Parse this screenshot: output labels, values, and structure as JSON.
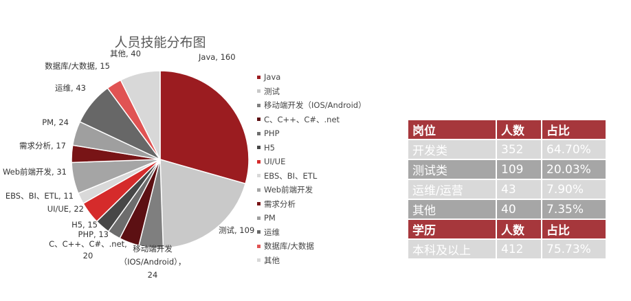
{
  "chart_data": {
    "type": "pie",
    "title": "人员技能分布图",
    "start": "12 o'clock, clockwise",
    "slices": [
      {
        "name": "Java",
        "value": 160,
        "label": "Java, 160",
        "color": "#9b1c20"
      },
      {
        "name": "测试",
        "value": 109,
        "label": "测试, 109",
        "color": "#c9c9c9"
      },
      {
        "name": "移动端开发（IOS/Android）",
        "value": 24,
        "label_lines": [
          "移动端开发",
          "（IOS/Android），",
          "24"
        ],
        "color": "#7f7f7f"
      },
      {
        "name": "C、C++、C#、.net",
        "value": 20,
        "label_lines": [
          "C、C++、C#、.net,",
          "20"
        ],
        "color": "#5c1013"
      },
      {
        "name": "PHP",
        "value": 13,
        "label": "PHP, 13",
        "color": "#6d6d6d"
      },
      {
        "name": "H5",
        "value": 15,
        "label": "H5, 15",
        "color": "#474747"
      },
      {
        "name": "UI/UE",
        "value": 22,
        "label": "UI/UE, 22",
        "color": "#d52b2b"
      },
      {
        "name": "EBS、BI、ETL",
        "value": 11,
        "label": "EBS、BI、ETL, 11",
        "color": "#d9d9d9"
      },
      {
        "name": "Web前端开发",
        "value": 31,
        "label": "Web前端开发, 31",
        "color": "#a5a5a5"
      },
      {
        "name": "需求分析",
        "value": 17,
        "label": "需求分析, 17",
        "color": "#781416"
      },
      {
        "name": "PM",
        "value": 24,
        "label": "PM, 24",
        "color": "#9f9f9f"
      },
      {
        "name": "运维",
        "value": 43,
        "label": "运维, 43",
        "color": "#676767"
      },
      {
        "name": "数据库/大数据",
        "value": 15,
        "label": "数据库/大数据, 15",
        "color": "#e05353"
      },
      {
        "name": "其他",
        "value": 40,
        "label": "其他, 40",
        "color": "#d8d8d8"
      }
    ],
    "legend_position": "right"
  },
  "table": {
    "header1": [
      "岗位",
      "人数",
      "占比"
    ],
    "rows1": [
      [
        "开发类",
        "352",
        "64.70%"
      ],
      [
        "测试类",
        "109",
        "20.03%"
      ],
      [
        "运维/运营",
        "43",
        "7.90%"
      ],
      [
        "其他",
        "40",
        "7.35%"
      ]
    ],
    "header2": [
      "学历",
      "人数",
      "占比"
    ],
    "rows2": [
      [
        "本科及以上",
        "412",
        "75.73%"
      ]
    ]
  }
}
